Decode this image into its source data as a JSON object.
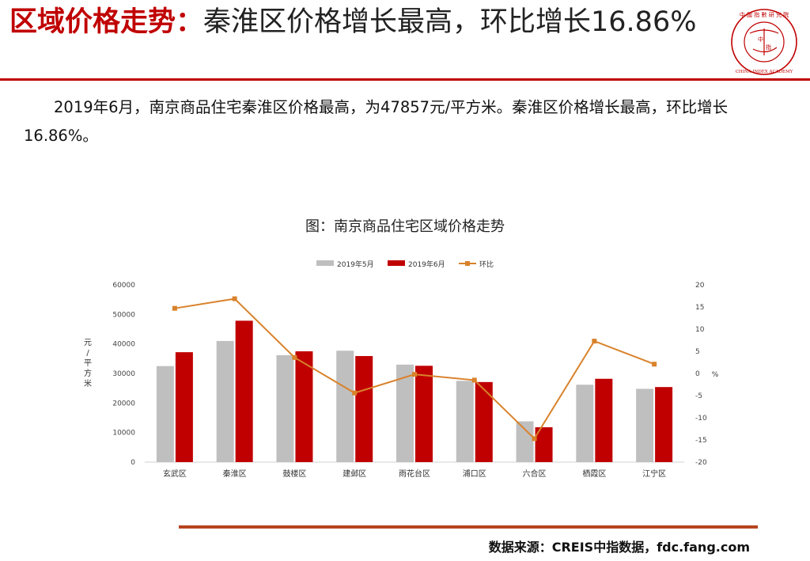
{
  "header": {
    "title_lead": "区域价格走势：",
    "title_rest": "秦淮区价格增长最高，环比增长16.86%",
    "logo": {
      "name": "china-index-academy-seal",
      "text": "中國指數研究院 CHINA INDEX ACADEMY 中指"
    },
    "accent_color": "#c00000"
  },
  "summary": "2019年6月，南京商品住宅秦淮区价格最高，为47857元/平方米。秦淮区价格增长最高，环比增长16.86%。",
  "chart_caption": "图：南京商品住宅区域价格走势",
  "chart_data": {
    "type": "bar",
    "categories": [
      "玄武区",
      "秦淮区",
      "鼓楼区",
      "建邺区",
      "雨花台区",
      "浦口区",
      "六合区",
      "栖霞区",
      "江宁区"
    ],
    "series": [
      {
        "name": "2019年5月",
        "type": "bar",
        "axis": "left",
        "color": "#bfbfbf",
        "values": [
          32500,
          41000,
          36200,
          37700,
          33000,
          27500,
          13800,
          26200,
          24800
        ]
      },
      {
        "name": "2019年6月",
        "type": "bar",
        "axis": "left",
        "color": "#c00000",
        "values": [
          37200,
          47857,
          37500,
          35900,
          32600,
          27100,
          11800,
          28200,
          25400
        ]
      },
      {
        "name": "环比",
        "type": "line",
        "axis": "right",
        "color": "#d9822b",
        "values": [
          14.7,
          16.86,
          3.6,
          -4.4,
          -0.2,
          -1.5,
          -14.7,
          7.3,
          2.1
        ]
      }
    ],
    "ylabel": "元/平方米",
    "ylim": [
      0,
      60000
    ],
    "yticks": [
      0,
      10000,
      20000,
      30000,
      40000,
      50000,
      60000
    ],
    "y2label": "%",
    "y2lim": [
      -20,
      20
    ],
    "y2ticks": [
      20,
      15,
      10,
      5,
      0,
      -5,
      -10,
      -15,
      -20
    ],
    "legend_position": "top",
    "grid": false
  },
  "source": "数据来源：CREIS中指数据，fdc.fang.com"
}
